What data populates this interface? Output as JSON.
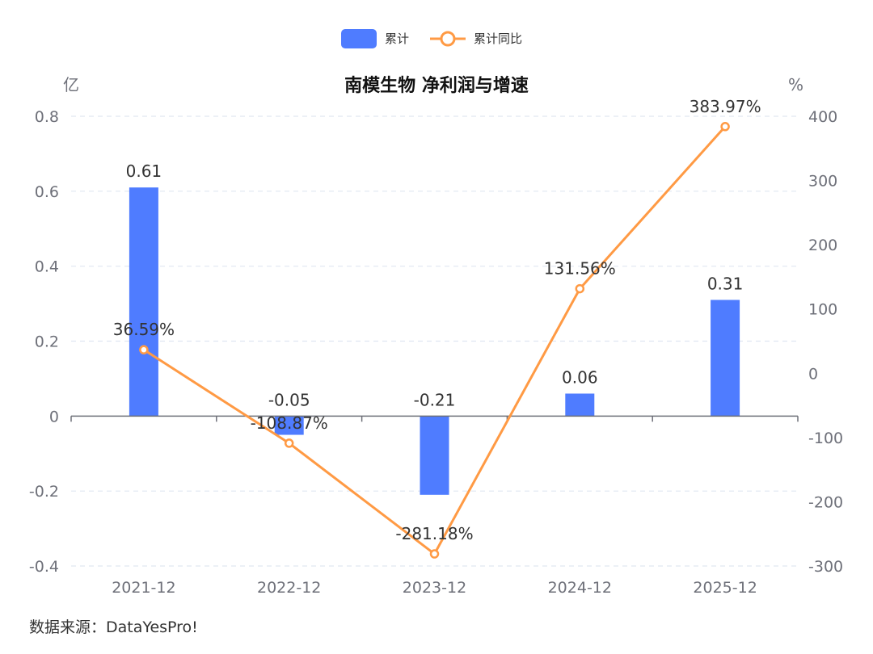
{
  "chart_data": {
    "type": "bar",
    "title": "南模生物 净利润与增速",
    "categories": [
      "2021-12",
      "2022-12",
      "2023-12",
      "2024-12",
      "2025-12"
    ],
    "series": [
      {
        "name": "累计",
        "type": "bar",
        "axis": "left",
        "values": [
          0.61,
          -0.05,
          -0.21,
          0.06,
          0.31
        ],
        "labels": [
          "0.61",
          "-0.05",
          "-0.21",
          "0.06",
          "0.31"
        ],
        "color": "#4f7cff"
      },
      {
        "name": "累计同比",
        "type": "line",
        "axis": "right",
        "values": [
          36.59,
          -108.87,
          -281.18,
          131.56,
          383.97
        ],
        "labels": [
          "36.59%",
          "-108.87%",
          "-281.18%",
          "131.56%",
          "383.97%"
        ],
        "color": "#ff9a44"
      }
    ],
    "y_left": {
      "unit": "亿",
      "range": [
        -0.4,
        0.8
      ],
      "ticks": [
        "0.8",
        "0.6",
        "0.4",
        "0.2",
        "0",
        "-0.2",
        "-0.4"
      ]
    },
    "y_right": {
      "unit": "%",
      "range": [
        -300,
        400
      ],
      "ticks": [
        "400",
        "300",
        "200",
        "100",
        "0",
        "-100",
        "-200",
        "-300"
      ]
    },
    "grid": true,
    "legend_position": "top-center"
  },
  "source": "数据来源：DataYesPro!"
}
